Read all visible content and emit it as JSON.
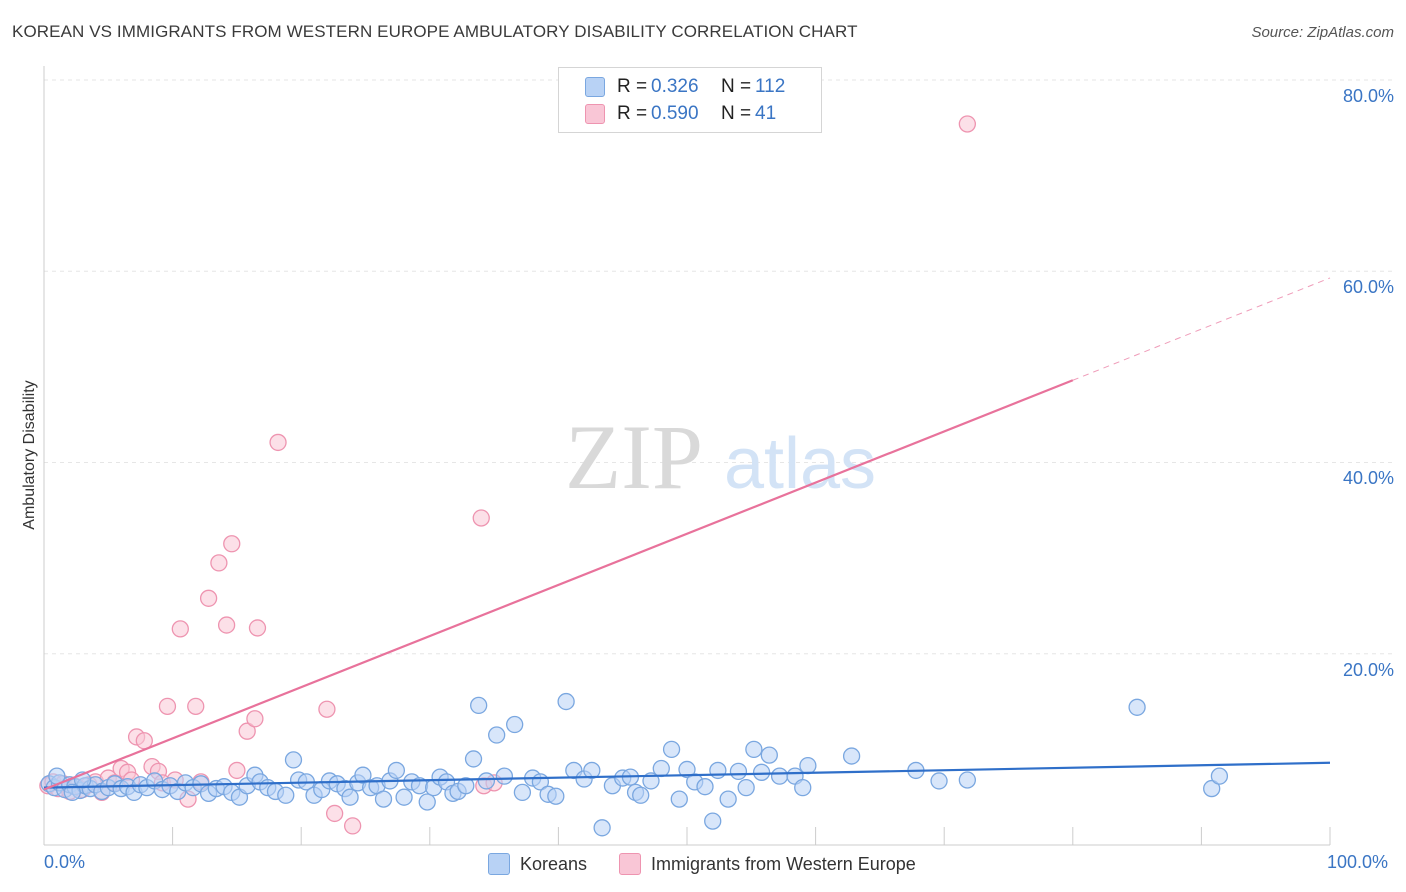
{
  "header": {
    "title": "KOREAN VS IMMIGRANTS FROM WESTERN EUROPE AMBULATORY DISABILITY CORRELATION CHART",
    "source": "Source: ZipAtlas.com"
  },
  "legend": {
    "rows": [
      {
        "r_label": "R =",
        "r_value": "0.326",
        "n_label": "N =",
        "n_value": "112"
      },
      {
        "r_label": "R =",
        "r_value": "0.590",
        "n_label": "N =",
        "n_value": "41"
      }
    ],
    "bottom": [
      "Koreans",
      "Immigrants from Western Europe"
    ]
  },
  "colors": {
    "blue_fill": "#b8d2f5",
    "blue_stroke": "#7aa7e0",
    "blue_line": "#2f6fc9",
    "pink_fill": "#f9c6d6",
    "pink_stroke": "#ee94b0",
    "pink_line": "#e8729b",
    "grid": "#e6e6e6",
    "axis_text": "#3a75c4"
  },
  "watermark": {
    "part1": "ZIP",
    "part2": "atlas"
  },
  "chart_data": {
    "type": "scatter",
    "title": "KOREAN VS IMMIGRANTS FROM WESTERN EUROPE AMBULATORY DISABILITY CORRELATION CHART",
    "xlabel": "",
    "ylabel": "Ambulatory Disability",
    "xlim": [
      0,
      100
    ],
    "ylim": [
      0,
      80
    ],
    "x_tick_labels": [
      "0.0%",
      "100.0%"
    ],
    "y_ticks": [
      20,
      40,
      60,
      80
    ],
    "y_tick_labels": [
      "20.0%",
      "40.0%",
      "60.0%",
      "80.0%"
    ],
    "grid": true,
    "series": [
      {
        "name": "Koreans",
        "r": 0.326,
        "n": 112,
        "trend": {
          "x": [
            0,
            100
          ],
          "y": [
            6.0,
            8.6
          ],
          "dashed_from": null
        },
        "points": [
          [
            0.4,
            6.4
          ],
          [
            0.8,
            6.0
          ],
          [
            1.2,
            6.5
          ],
          [
            1.6,
            5.8
          ],
          [
            2.0,
            6.3
          ],
          [
            2.4,
            6.1
          ],
          [
            2.8,
            5.7
          ],
          [
            3.2,
            6.2
          ],
          [
            3.6,
            5.9
          ],
          [
            4.0,
            6.3
          ],
          [
            4.5,
            5.6
          ],
          [
            5.0,
            6.0
          ],
          [
            5.5,
            6.4
          ],
          [
            6.0,
            5.9
          ],
          [
            6.5,
            6.1
          ],
          [
            7.0,
            5.5
          ],
          [
            7.5,
            6.3
          ],
          [
            8.0,
            6.0
          ],
          [
            8.6,
            6.7
          ],
          [
            9.2,
            5.8
          ],
          [
            9.8,
            6.2
          ],
          [
            10.4,
            5.6
          ],
          [
            11.0,
            6.5
          ],
          [
            11.6,
            6.0
          ],
          [
            12.2,
            6.4
          ],
          [
            12.8,
            5.4
          ],
          [
            13.4,
            5.9
          ],
          [
            14.0,
            6.1
          ],
          [
            14.6,
            5.5
          ],
          [
            15.2,
            5.0
          ],
          [
            15.8,
            6.2
          ],
          [
            16.4,
            7.3
          ],
          [
            16.8,
            6.6
          ],
          [
            17.4,
            6.0
          ],
          [
            18.0,
            5.6
          ],
          [
            18.8,
            5.2
          ],
          [
            19.4,
            8.9
          ],
          [
            19.8,
            6.8
          ],
          [
            20.4,
            6.6
          ],
          [
            21.0,
            5.2
          ],
          [
            21.6,
            5.8
          ],
          [
            22.2,
            6.7
          ],
          [
            22.8,
            6.4
          ],
          [
            23.4,
            5.9
          ],
          [
            23.8,
            5.0
          ],
          [
            24.4,
            6.5
          ],
          [
            24.8,
            7.3
          ],
          [
            25.4,
            6.0
          ],
          [
            25.9,
            6.2
          ],
          [
            26.4,
            4.8
          ],
          [
            26.9,
            6.7
          ],
          [
            27.4,
            7.8
          ],
          [
            28.0,
            5.0
          ],
          [
            28.6,
            6.6
          ],
          [
            29.2,
            6.2
          ],
          [
            29.8,
            4.5
          ],
          [
            30.3,
            6.0
          ],
          [
            30.8,
            7.1
          ],
          [
            31.3,
            6.6
          ],
          [
            31.8,
            5.4
          ],
          [
            32.2,
            5.6
          ],
          [
            32.8,
            6.2
          ],
          [
            33.4,
            9.0
          ],
          [
            33.8,
            14.6
          ],
          [
            34.4,
            6.7
          ],
          [
            35.2,
            11.5
          ],
          [
            35.8,
            7.2
          ],
          [
            36.6,
            12.6
          ],
          [
            37.2,
            5.5
          ],
          [
            38.0,
            7.0
          ],
          [
            38.6,
            6.6
          ],
          [
            39.2,
            5.3
          ],
          [
            39.8,
            5.1
          ],
          [
            40.6,
            15.0
          ],
          [
            41.2,
            7.8
          ],
          [
            42.0,
            6.9
          ],
          [
            42.6,
            7.8
          ],
          [
            43.4,
            1.8
          ],
          [
            44.2,
            6.2
          ],
          [
            45.0,
            7.0
          ],
          [
            45.6,
            7.1
          ],
          [
            46.0,
            5.5
          ],
          [
            46.4,
            5.2
          ],
          [
            47.2,
            6.7
          ],
          [
            48.0,
            8.0
          ],
          [
            48.8,
            10.0
          ],
          [
            49.4,
            4.8
          ],
          [
            50.0,
            7.9
          ],
          [
            50.6,
            6.6
          ],
          [
            51.4,
            6.1
          ],
          [
            52.0,
            2.5
          ],
          [
            52.4,
            7.8
          ],
          [
            53.2,
            4.8
          ],
          [
            54.0,
            7.7
          ],
          [
            54.6,
            6.0
          ],
          [
            55.2,
            10.0
          ],
          [
            55.8,
            7.6
          ],
          [
            56.4,
            9.4
          ],
          [
            57.2,
            7.2
          ],
          [
            58.4,
            7.2
          ],
          [
            59.0,
            6.0
          ],
          [
            59.4,
            8.3
          ],
          [
            62.8,
            9.3
          ],
          [
            67.8,
            7.8
          ],
          [
            69.6,
            6.7
          ],
          [
            71.8,
            6.8
          ],
          [
            85.0,
            14.4
          ],
          [
            90.8,
            5.9
          ],
          [
            91.4,
            7.2
          ],
          [
            2.2,
            5.5
          ],
          [
            3.0,
            6.8
          ],
          [
            1.0,
            7.2
          ]
        ]
      },
      {
        "name": "Immigrants from Western Europe",
        "r": 0.59,
        "n": 41,
        "trend": {
          "x": [
            0,
            100
          ],
          "y": [
            5.8,
            59.3
          ],
          "dashed_from": 80
        },
        "points": [
          [
            0.3,
            6.2
          ],
          [
            0.7,
            6.6
          ],
          [
            1.1,
            5.9
          ],
          [
            1.5,
            6.4
          ],
          [
            2.0,
            5.6
          ],
          [
            2.5,
            6.1
          ],
          [
            3.0,
            5.8
          ],
          [
            3.5,
            6.3
          ],
          [
            4.0,
            6.6
          ],
          [
            4.5,
            5.5
          ],
          [
            5.0,
            7.0
          ],
          [
            5.5,
            6.5
          ],
          [
            6.0,
            8.0
          ],
          [
            6.5,
            7.6
          ],
          [
            6.8,
            6.8
          ],
          [
            7.2,
            11.3
          ],
          [
            7.8,
            10.9
          ],
          [
            8.4,
            8.2
          ],
          [
            8.9,
            7.7
          ],
          [
            9.2,
            6.5
          ],
          [
            9.6,
            14.5
          ],
          [
            10.2,
            6.8
          ],
          [
            10.6,
            22.6
          ],
          [
            11.2,
            4.8
          ],
          [
            11.8,
            14.5
          ],
          [
            12.2,
            6.6
          ],
          [
            12.8,
            25.8
          ],
          [
            13.6,
            29.5
          ],
          [
            14.2,
            23.0
          ],
          [
            14.6,
            31.5
          ],
          [
            15.0,
            7.8
          ],
          [
            15.8,
            11.9
          ],
          [
            16.4,
            13.2
          ],
          [
            16.6,
            22.7
          ],
          [
            18.2,
            42.1
          ],
          [
            22.0,
            14.2
          ],
          [
            22.6,
            3.3
          ],
          [
            24.0,
            2.0
          ],
          [
            34.2,
            6.2
          ],
          [
            34.0,
            34.2
          ],
          [
            35.0,
            6.5
          ],
          [
            71.8,
            75.4
          ]
        ]
      }
    ]
  }
}
